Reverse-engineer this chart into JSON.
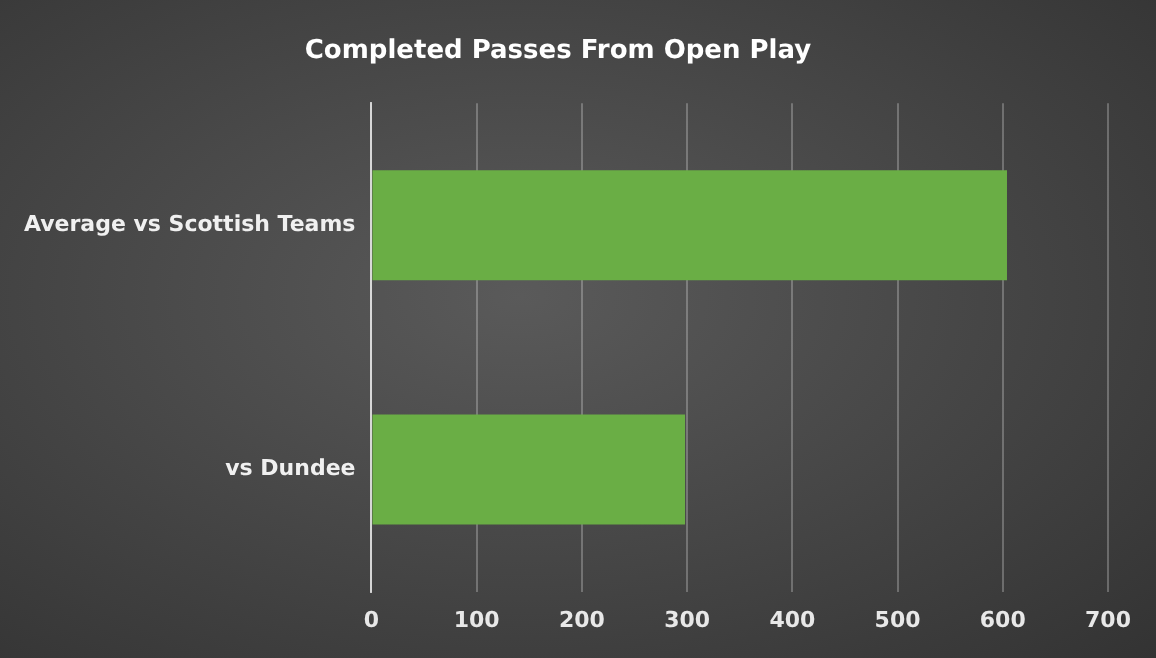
{
  "chart_data": {
    "type": "bar",
    "orientation": "horizontal",
    "title": "Completed Passes From Open Play",
    "categories": [
      "Average vs Scottish Teams",
      "vs Dundee"
    ],
    "values": [
      604,
      298
    ],
    "color": "#6aae45",
    "xlim": [
      0,
      700
    ],
    "xticks": [
      0,
      100,
      200,
      300,
      400,
      500,
      600,
      700
    ],
    "grid": "x",
    "legend": false
  }
}
